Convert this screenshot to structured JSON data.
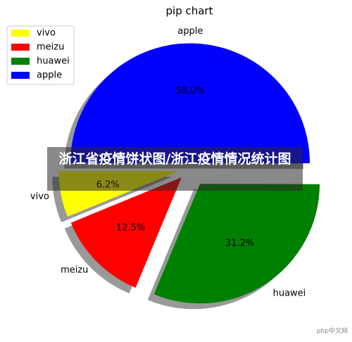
{
  "chart_data": {
    "type": "pie",
    "title": "pip chart",
    "categories": [
      "vivo",
      "meizu",
      "huawei",
      "apple"
    ],
    "values": [
      6.2,
      12.5,
      31.2,
      50.0
    ],
    "value_labels": [
      "6.2%",
      "12.5%",
      "31.2%",
      "50.0%"
    ],
    "colors": [
      "#ffff00",
      "#ff0000",
      "#008000",
      "#0000ff"
    ],
    "legend": "upper left",
    "shadow": true
  },
  "overlay_caption": "浙江省疫情饼状图/浙江疫情情况统计图",
  "watermark": "php中文网"
}
